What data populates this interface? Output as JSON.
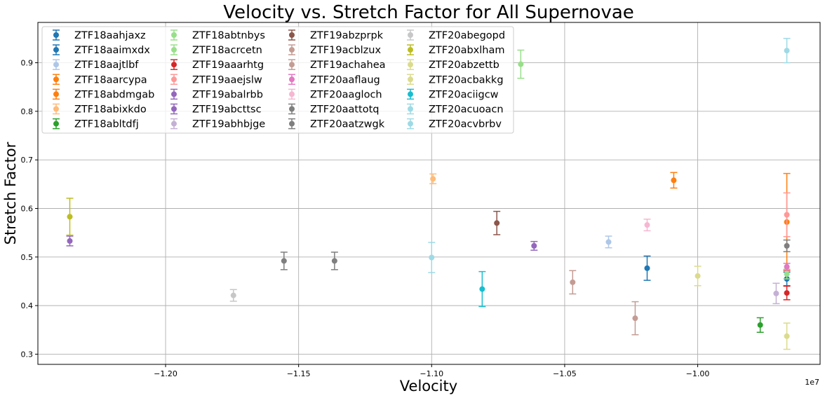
{
  "chart_data": {
    "type": "scatter",
    "title": "Velocity vs. Stretch Factor for All Supernovae",
    "xlabel": "Velocity",
    "ylabel": "Stretch Factor",
    "x_offset_label": "1e7",
    "xlim": [
      -12.48,
      -9.54
    ],
    "ylim": [
      0.279,
      0.983
    ],
    "x_ticks": [
      -12.0,
      -11.5,
      -11.0,
      -10.5,
      -10.0
    ],
    "x_tick_labels": [
      "−1.20",
      "−1.15",
      "−1.10",
      "−1.05",
      "−1.00"
    ],
    "y_ticks": [
      0.3,
      0.4,
      0.5,
      0.6,
      0.7,
      0.8,
      0.9
    ],
    "y_tick_labels": [
      "0.3",
      "0.4",
      "0.5",
      "0.6",
      "0.7",
      "0.8",
      "0.9"
    ],
    "grid": true,
    "legend_position": "top-left",
    "legend_columns": 4,
    "series": [
      {
        "name": "ZTF18aahjaxz",
        "color": "#1f77b4",
        "x": -9.665,
        "y": 0.455,
        "err": 0.014
      },
      {
        "name": "ZTF18aaimxdx",
        "color": "#1f77b4",
        "x": -10.19,
        "y": 0.477,
        "err": 0.025
      },
      {
        "name": "ZTF18aajtlbf",
        "color": "#aec7e8",
        "x": -10.335,
        "y": 0.531,
        "err": 0.012
      },
      {
        "name": "ZTF18aarcypa",
        "color": "#ff7f0e",
        "x": -9.665,
        "y": 0.572,
        "err": 0.1
      },
      {
        "name": "ZTF18abdmgab",
        "color": "#ff7f0e",
        "x": -10.09,
        "y": 0.658,
        "err": 0.016
      },
      {
        "name": "ZTF18abixkdo",
        "color": "#ffbb78",
        "x": -10.995,
        "y": 0.661,
        "err": 0.01
      },
      {
        "name": "ZTF18abltdfj",
        "color": "#2ca02c",
        "x": -9.765,
        "y": 0.36,
        "err": 0.015
      },
      {
        "name": "ZTF18abtnbys",
        "color": "#98df8a",
        "x": -10.665,
        "y": 0.897,
        "err": 0.029
      },
      {
        "name": "ZTF18acrcetn",
        "color": "#98df8a",
        "x": -9.665,
        "y": 0.465,
        "err": 0.01
      },
      {
        "name": "ZTF19aaarhtg",
        "color": "#d62728",
        "x": -9.665,
        "y": 0.426,
        "err": 0.014
      },
      {
        "name": "ZTF19aaejslw",
        "color": "#ff9896",
        "x": -9.665,
        "y": 0.587,
        "err": 0.045
      },
      {
        "name": "ZTF19abalrbb",
        "color": "#9467bd",
        "x": -12.36,
        "y": 0.533,
        "err": 0.01
      },
      {
        "name": "ZTF19abcttsc",
        "color": "#9467bd",
        "x": -10.615,
        "y": 0.523,
        "err": 0.009
      },
      {
        "name": "ZTF19abhbjge",
        "color": "#c5b0d5",
        "x": -9.705,
        "y": 0.425,
        "err": 0.021
      },
      {
        "name": "ZTF19abzprpk",
        "color": "#8c564b",
        "x": -10.755,
        "y": 0.57,
        "err": 0.024
      },
      {
        "name": "ZTF19acblzux",
        "color": "#c49c94",
        "x": -10.47,
        "y": 0.448,
        "err": 0.024
      },
      {
        "name": "ZTF19achahea",
        "color": "#c49c94",
        "x": -10.235,
        "y": 0.374,
        "err": 0.034
      },
      {
        "name": "ZTF20aaflaug",
        "color": "#e377c2",
        "x": -9.665,
        "y": 0.48,
        "err": 0.007
      },
      {
        "name": "ZTF20aagloch",
        "color": "#f7b6d2",
        "x": -10.19,
        "y": 0.566,
        "err": 0.012
      },
      {
        "name": "ZTF20aattotq",
        "color": "#7f7f7f",
        "x": -11.365,
        "y": 0.492,
        "err": 0.018
      },
      {
        "name": "ZTF20aatzwgk",
        "color": "#7f7f7f",
        "x": -11.555,
        "y": 0.492,
        "err": 0.018
      },
      {
        "name": "ZTF20abegopd",
        "color": "#c7c7c7",
        "x": -11.745,
        "y": 0.421,
        "err": 0.012
      },
      {
        "name": "ZTF20abxlham",
        "color": "#bcbd22",
        "x": -12.36,
        "y": 0.583,
        "err": 0.038
      },
      {
        "name": "ZTF20abzettb",
        "color": "#dbdb8d",
        "x": -10.0,
        "y": 0.461,
        "err": 0.02
      },
      {
        "name": "ZTF20acbakkg",
        "color": "#dbdb8d",
        "x": -9.665,
        "y": 0.337,
        "err": 0.027
      },
      {
        "name": "ZTF20aciigcw",
        "color": "#17becf",
        "x": -10.81,
        "y": 0.434,
        "err": 0.036
      },
      {
        "name": "ZTF20acuoacn",
        "color": "#9edae5",
        "x": -11.0,
        "y": 0.499,
        "err": 0.031
      },
      {
        "name": "ZTF20acvbrbv",
        "color": "#9edae5",
        "x": -9.665,
        "y": 0.925,
        "err": 0.025
      },
      {
        "name": "",
        "color": "#7f7f7f",
        "x": -9.665,
        "y": 0.523,
        "err": 0.012
      }
    ]
  }
}
